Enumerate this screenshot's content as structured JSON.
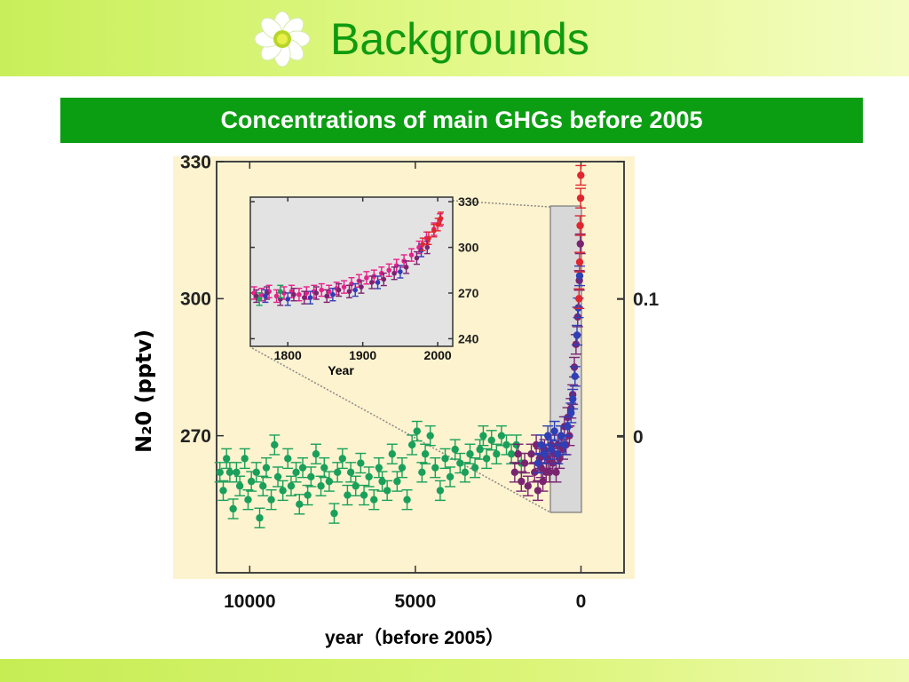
{
  "header": {
    "title": "Backgrounds",
    "icon": "flower-icon",
    "accent": "#109a10"
  },
  "banner": {
    "text": "Concentrations of main GHGs before 2005",
    "color": "#0b9e12"
  },
  "chart_data": [
    {
      "type": "scatter",
      "title": "",
      "xlabel": "year（before 2005）",
      "ylabel": "N₂0 (pptv)",
      "x_ticks": [
        "10000",
        "5000",
        "0"
      ],
      "xlim": [
        11000,
        -1300
      ],
      "ylim": [
        240,
        330
      ],
      "y_ticks": [
        "330",
        "300",
        "270"
      ],
      "right_ticks": [
        "0.1",
        "0"
      ],
      "grid": false,
      "series": [
        {
          "color": "#1aa05a",
          "points": [
            [
              10900,
              262
            ],
            [
              10800,
              258
            ],
            [
              10700,
              265
            ],
            [
              10600,
              262
            ],
            [
              10500,
              254
            ],
            [
              10400,
              262
            ],
            [
              10300,
              259
            ],
            [
              10150,
              265
            ],
            [
              10050,
              256
            ],
            [
              9950,
              260
            ],
            [
              9800,
              262
            ],
            [
              9700,
              252
            ],
            [
              9600,
              259
            ],
            [
              9500,
              263
            ],
            [
              9350,
              256
            ],
            [
              9250,
              268
            ],
            [
              9150,
              261
            ],
            [
              9000,
              258
            ],
            [
              8850,
              265
            ],
            [
              8750,
              259
            ],
            [
              8600,
              262
            ],
            [
              8500,
              255
            ],
            [
              8400,
              263
            ],
            [
              8250,
              257
            ],
            [
              8150,
              261
            ],
            [
              8000,
              266
            ],
            [
              7850,
              259
            ],
            [
              7750,
              263
            ],
            [
              7600,
              260
            ],
            [
              7450,
              253
            ],
            [
              7350,
              262
            ],
            [
              7200,
              265
            ],
            [
              7050,
              257
            ],
            [
              6950,
              262
            ],
            [
              6800,
              259
            ],
            [
              6650,
              264
            ],
            [
              6550,
              257
            ],
            [
              6400,
              261
            ],
            [
              6250,
              256
            ],
            [
              6100,
              263
            ],
            [
              6000,
              260
            ],
            [
              5850,
              258
            ],
            [
              5700,
              266
            ],
            [
              5550,
              260
            ],
            [
              5400,
              263
            ],
            [
              5250,
              256
            ],
            [
              5100,
              268
            ],
            [
              4950,
              271
            ],
            [
              4800,
              262
            ],
            [
              4700,
              266
            ],
            [
              4550,
              270
            ],
            [
              4400,
              263
            ],
            [
              4250,
              258
            ],
            [
              4100,
              265
            ],
            [
              3950,
              261
            ],
            [
              3800,
              267
            ],
            [
              3650,
              264
            ],
            [
              3500,
              262
            ],
            [
              3350,
              266
            ],
            [
              3200,
              263
            ],
            [
              3050,
              267
            ],
            [
              2950,
              270
            ],
            [
              2850,
              265
            ],
            [
              2700,
              269
            ],
            [
              2550,
              266
            ],
            [
              2400,
              270
            ],
            [
              2250,
              268
            ],
            [
              2100,
              266
            ],
            [
              1950,
              268
            ],
            [
              1800,
              264
            ]
          ]
        },
        {
          "color": "#7a2470",
          "points": [
            [
              2000,
              262
            ],
            [
              1900,
              266
            ],
            [
              1800,
              260
            ],
            [
              1700,
              264
            ],
            [
              1600,
              259
            ],
            [
              1500,
              266
            ],
            [
              1400,
              262
            ],
            [
              1350,
              268
            ],
            [
              1300,
              258
            ],
            [
              1250,
              265
            ],
            [
              1200,
              263
            ],
            [
              1150,
              260
            ],
            [
              1100,
              267
            ],
            [
              1050,
              262
            ],
            [
              1000,
              265
            ],
            [
              950,
              262
            ],
            [
              900,
              268
            ],
            [
              850,
              264
            ],
            [
              800,
              266
            ],
            [
              750,
              262
            ],
            [
              700,
              268
            ],
            [
              650,
              265
            ],
            [
              600,
              270
            ],
            [
              550,
              267
            ],
            [
              500,
              272
            ],
            [
              450,
              268
            ],
            [
              400,
              274
            ],
            [
              350,
              270
            ],
            [
              300,
              276
            ],
            [
              250,
              279
            ],
            [
              200,
              285
            ],
            [
              150,
              290
            ],
            [
              100,
              296
            ],
            [
              50,
              304
            ],
            [
              20,
              312
            ]
          ]
        },
        {
          "color": "#2f3fb5",
          "points": [
            [
              1300,
              264
            ],
            [
              1200,
              268
            ],
            [
              1100,
              266
            ],
            [
              1000,
              270
            ],
            [
              900,
              267
            ],
            [
              800,
              271
            ],
            [
              700,
              266
            ],
            [
              600,
              270
            ],
            [
              500,
              268
            ],
            [
              400,
              272
            ],
            [
              300,
              275
            ],
            [
              250,
              278
            ],
            [
              180,
              283
            ],
            [
              120,
              292
            ],
            [
              80,
              298
            ],
            [
              40,
              305
            ]
          ]
        },
        {
          "color": "#e0262e",
          "points": [
            [
              60,
              300
            ],
            [
              40,
              308
            ],
            [
              25,
              316
            ],
            [
              12,
              322
            ],
            [
              5,
              327
            ]
          ]
        }
      ]
    },
    {
      "type": "scatter",
      "title": "",
      "xlabel": "Year",
      "ylabel": "",
      "x_ticks": [
        "1800",
        "1900",
        "2000"
      ],
      "y_ticks": [
        "330",
        "300",
        "270",
        "240"
      ],
      "xlim": [
        1750,
        2020
      ],
      "ylim": [
        235,
        333
      ],
      "grid": false,
      "series": [
        {
          "color": "#e8208a",
          "points": [
            [
              1755,
              270
            ],
            [
              1765,
              269
            ],
            [
              1775,
              271
            ],
            [
              1785,
              268
            ],
            [
              1795,
              270
            ],
            [
              1805,
              271
            ],
            [
              1815,
              269
            ],
            [
              1825,
              270
            ],
            [
              1835,
              271
            ],
            [
              1845,
              272
            ],
            [
              1855,
              271
            ],
            [
              1865,
              273
            ],
            [
              1875,
              274
            ],
            [
              1885,
              276
            ],
            [
              1895,
              278
            ],
            [
              1905,
              280
            ],
            [
              1915,
              281
            ],
            [
              1925,
              283
            ],
            [
              1935,
              285
            ],
            [
              1945,
              288
            ],
            [
              1955,
              291
            ],
            [
              1965,
              295
            ],
            [
              1975,
              300
            ],
            [
              1985,
              306
            ],
            [
              1995,
              312
            ],
            [
              2003,
              318
            ]
          ]
        },
        {
          "color": "#7a2470",
          "points": [
            [
              1758,
              268
            ],
            [
              1772,
              270
            ],
            [
              1790,
              266
            ],
            [
              1808,
              269
            ],
            [
              1822,
              267
            ],
            [
              1838,
              270
            ],
            [
              1852,
              268
            ],
            [
              1868,
              272
            ],
            [
              1882,
              271
            ],
            [
              1898,
              274
            ],
            [
              1912,
              277
            ],
            [
              1928,
              279
            ],
            [
              1942,
              283
            ],
            [
              1958,
              287
            ],
            [
              1972,
              293
            ],
            [
              1986,
              300
            ]
          ]
        },
        {
          "color": "#2f3fb5",
          "points": [
            [
              1770,
              268
            ],
            [
              1800,
              266
            ],
            [
              1830,
              267
            ],
            [
              1860,
              269
            ],
            [
              1890,
              272
            ],
            [
              1920,
              277
            ],
            [
              1950,
              284
            ],
            [
              1978,
              298
            ]
          ]
        },
        {
          "color": "#1aa05a",
          "points": [
            [
              1762,
              266
            ],
            [
              1790,
              271
            ]
          ]
        },
        {
          "color": "#e0262e",
          "points": [
            [
              1980,
              302
            ],
            [
              1988,
              306
            ],
            [
              1995,
              311
            ],
            [
              2000,
              315
            ],
            [
              2004,
              319
            ]
          ]
        }
      ]
    }
  ]
}
